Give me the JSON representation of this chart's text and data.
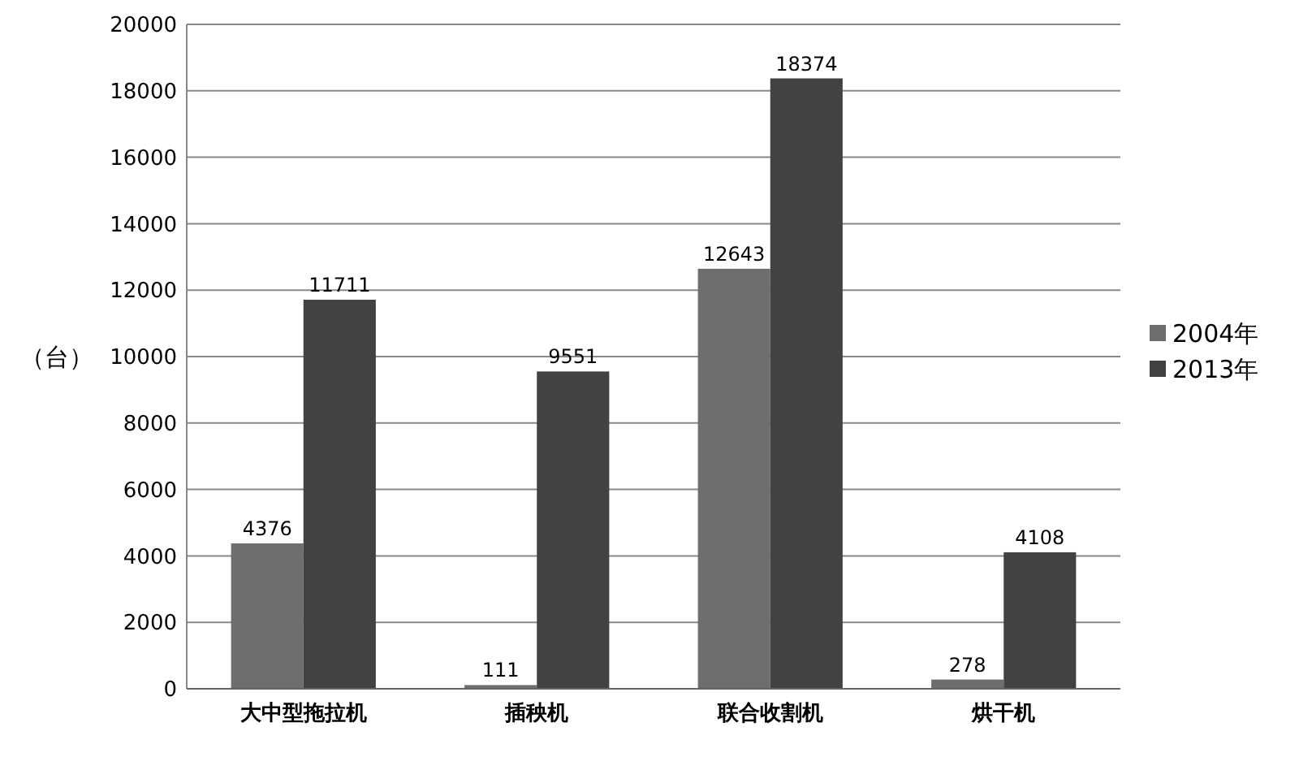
{
  "chart_data": {
    "type": "bar",
    "ylabel": "（台）",
    "categories": [
      "大中型拖拉机",
      "插秧机",
      "联合收割机",
      "烘干机"
    ],
    "series": [
      {
        "name": "2004年",
        "color": "#6e6e6e",
        "values": [
          4376,
          111,
          12643,
          278
        ]
      },
      {
        "name": "2013年",
        "color": "#424242",
        "values": [
          11711,
          9551,
          18374,
          4108
        ]
      }
    ],
    "ylim": [
      0,
      20000
    ],
    "yticks": [
      0,
      2000,
      4000,
      6000,
      8000,
      10000,
      12000,
      14000,
      16000,
      18000,
      20000
    ],
    "grid": "y",
    "legend": "right",
    "data_labels": true
  }
}
